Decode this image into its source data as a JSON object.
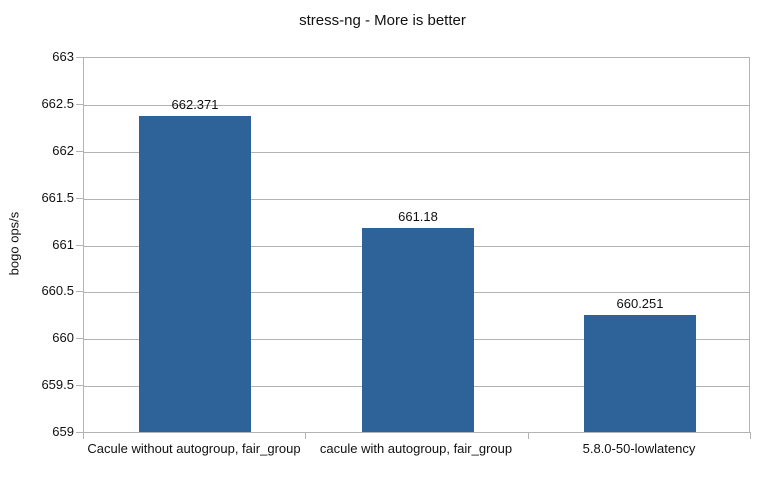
{
  "chart_data": {
    "type": "bar",
    "title": "stress-ng - More is better",
    "xlabel": "",
    "ylabel": "bogo ops/s",
    "categories": [
      "Cacule without autogroup, fair_group",
      "cacule with autogroup, fair_group",
      "5.8.0-50-lowlatency"
    ],
    "values": [
      662.371,
      661.18,
      660.251
    ],
    "value_labels": [
      "662.371",
      "661.18",
      "660.251"
    ],
    "ylim": [
      659,
      663
    ],
    "ytick_step": 0.5,
    "ytick_labels": [
      "663",
      "662.5",
      "662",
      "661.5",
      "661",
      "660.5",
      "660",
      "659.5",
      "659"
    ],
    "grid": "horizontal",
    "legend": "none",
    "colors": {
      "bar_fill": "#2d6399",
      "gridline": "#b3b3b3",
      "frame": "#b3b3b3",
      "text": "#111111",
      "background": "#ffffff"
    }
  }
}
